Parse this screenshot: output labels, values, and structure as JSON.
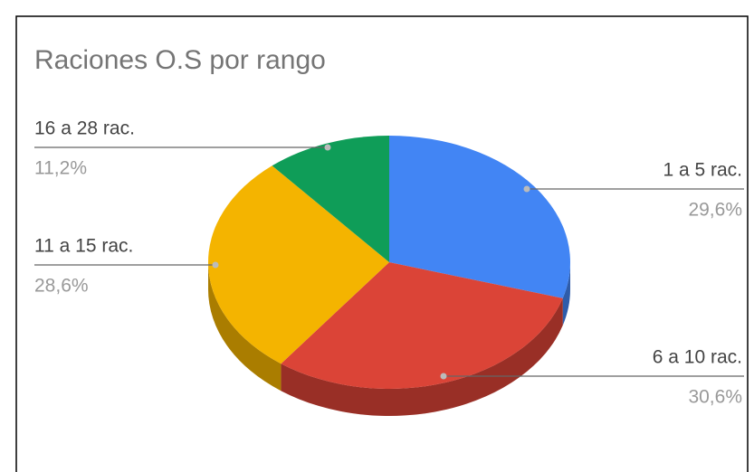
{
  "chart_data": {
    "type": "pie3d",
    "title": "Raciones O.S por rango",
    "categories": [
      "1 a 5 rac.",
      "6 a 10 rac.",
      "11 a 15 rac.",
      "16 a 28 rac."
    ],
    "values": [
      29.6,
      30.6,
      28.6,
      11.2
    ],
    "value_labels": [
      "29,6%",
      "30,6%",
      "28,6%",
      "11,2%"
    ],
    "colors": [
      "#4285f4",
      "#db4437",
      "#f4b400",
      "#0f9d58"
    ]
  }
}
